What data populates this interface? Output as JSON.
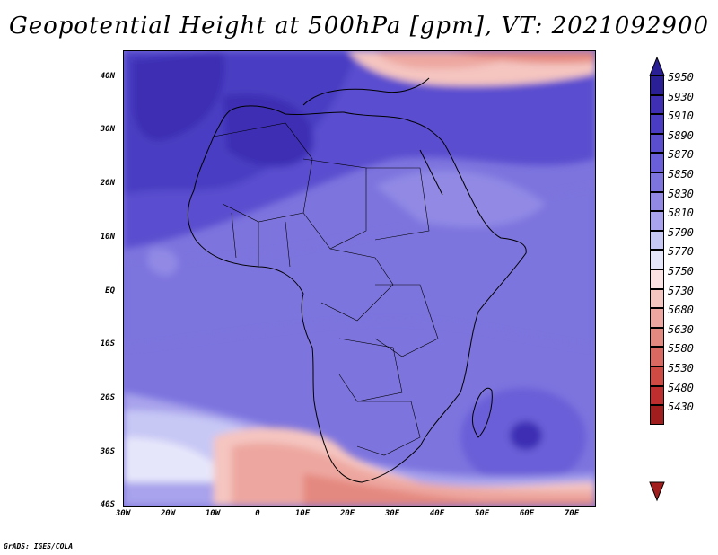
{
  "title": "Geopotential Height at 500hPa [gpm], VT: 2021092900",
  "credit": "GrADS: IGES/COLA",
  "axis": {
    "lat_labels": [
      "40N",
      "30N",
      "20N",
      "10N",
      "EQ",
      "10S",
      "20S",
      "30S",
      "40S"
    ],
    "lon_labels": [
      "30W",
      "20W",
      "10W",
      "0",
      "10E",
      "20E",
      "30E",
      "40E",
      "50E",
      "60E",
      "70E"
    ]
  },
  "colorbar": {
    "levels": [
      "5950",
      "5930",
      "5910",
      "5890",
      "5870",
      "5850",
      "5830",
      "5810",
      "5790",
      "5770",
      "5750",
      "5730",
      "5680",
      "5630",
      "5580",
      "5530",
      "5480",
      "5430"
    ],
    "colors": [
      "#2b1f96",
      "#3e2fb4",
      "#4a3dc3",
      "#5a4ecf",
      "#6a5fd8",
      "#7d74de",
      "#9189e4",
      "#a8a3ec",
      "#c8c8f5",
      "#e6e6fb",
      "#fbe3e3",
      "#f5c5c0",
      "#eda7a0",
      "#e48980",
      "#da6a61",
      "#cf4a43",
      "#bf2e2e",
      "#a01e1e"
    ]
  },
  "colors": {
    "frame": "#000000",
    "background": "#ffffff"
  }
}
